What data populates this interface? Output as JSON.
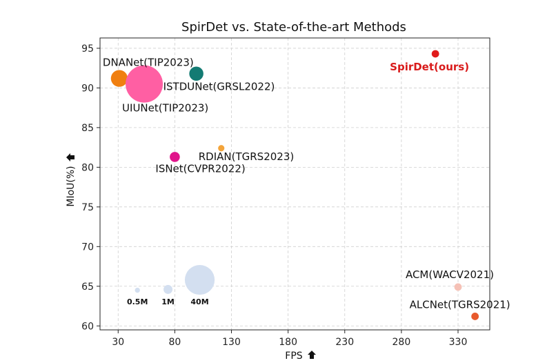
{
  "chart_data": {
    "type": "scatter",
    "title": "SpirDet vs. State-of-the-art Methods",
    "xlabel": "FPS",
    "ylabel": "MIoU(%)",
    "xlim": [
      14,
      358
    ],
    "ylim": [
      59.5,
      96.3
    ],
    "xticks": [
      30,
      80,
      130,
      180,
      230,
      280,
      330
    ],
    "yticks": [
      60,
      65,
      70,
      75,
      80,
      85,
      90,
      95
    ],
    "grid": true,
    "points": [
      {
        "name": "DNANet(TIP2023)",
        "x": 31,
        "y": 91.2,
        "color": "#f07f10",
        "size_rel": 0.45
      },
      {
        "name": "UIUNet(TIP2023)",
        "x": 53,
        "y": 90.5,
        "color": "#ff5fa3",
        "size_rel": 1.0
      },
      {
        "name": "ISTDUNet(GRSL2022)",
        "x": 99,
        "y": 91.8,
        "color": "#137b73",
        "size_rel": 0.38
      },
      {
        "name": "SpirDet(ours)",
        "x": 310,
        "y": 94.3,
        "color": "#e01b1b",
        "size_rel": 0.2,
        "highlight": true
      },
      {
        "name": "RDIAN(TGRS2023)",
        "x": 121,
        "y": 82.4,
        "color": "#f3a43a",
        "size_rel": 0.17
      },
      {
        "name": "ISNet(CVPR2022)",
        "x": 80,
        "y": 81.3,
        "color": "#e0158b",
        "size_rel": 0.27
      },
      {
        "name": "ACM(WACV2021)",
        "x": 330,
        "y": 64.9,
        "color": "#f5c1b6",
        "size_rel": 0.2
      },
      {
        "name": "ALCNet(TGRS2021)",
        "x": 345,
        "y": 61.2,
        "color": "#e85a2c",
        "size_rel": 0.2
      }
    ],
    "size_legend": [
      {
        "label": "0.5M",
        "x": 47,
        "y": 64.5,
        "color": "#d3dff0",
        "size_rel": 0.17
      },
      {
        "label": "1M",
        "x": 74,
        "y": 64.6,
        "color": "#d3dff0",
        "size_rel": 0.3
      },
      {
        "label": "40M",
        "x": 102,
        "y": 65.8,
        "color": "#d3dff0",
        "size_rel": 1.0
      }
    ]
  }
}
